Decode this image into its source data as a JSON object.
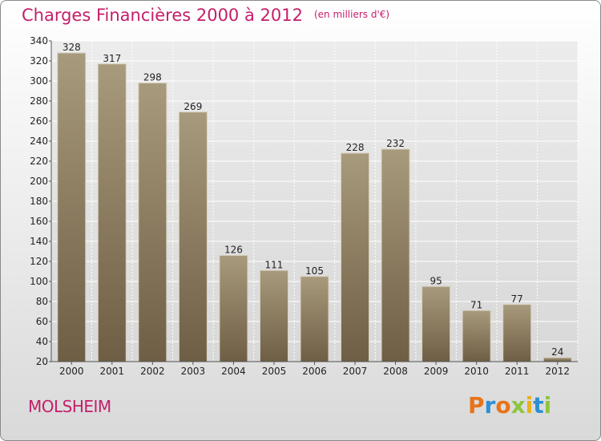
{
  "header": {
    "title": "Charges Financières 2000 à 2012",
    "subtitle": "(en milliers d'€)"
  },
  "footer": {
    "city": "MOLSHEIM",
    "brand": "Proxiti"
  },
  "chart_data": {
    "type": "bar",
    "title": "Charges Financières 2000 à 2012",
    "subtitle": "(en milliers d'€)",
    "xlabel": "",
    "ylabel": "",
    "categories": [
      "2000",
      "2001",
      "2002",
      "2003",
      "2004",
      "2005",
      "2006",
      "2007",
      "2008",
      "2009",
      "2010",
      "2011",
      "2012"
    ],
    "values": [
      328,
      317,
      298,
      269,
      126,
      111,
      105,
      228,
      232,
      95,
      71,
      77,
      24
    ],
    "ylim": [
      20,
      340
    ],
    "yticks": [
      20,
      40,
      60,
      80,
      100,
      120,
      140,
      160,
      180,
      200,
      220,
      240,
      260,
      280,
      300,
      320,
      340
    ],
    "grid": true,
    "colors": {
      "bar_top": "#a89a7c",
      "bar_bottom": "#6e5e45",
      "title": "#c41e6a"
    }
  }
}
